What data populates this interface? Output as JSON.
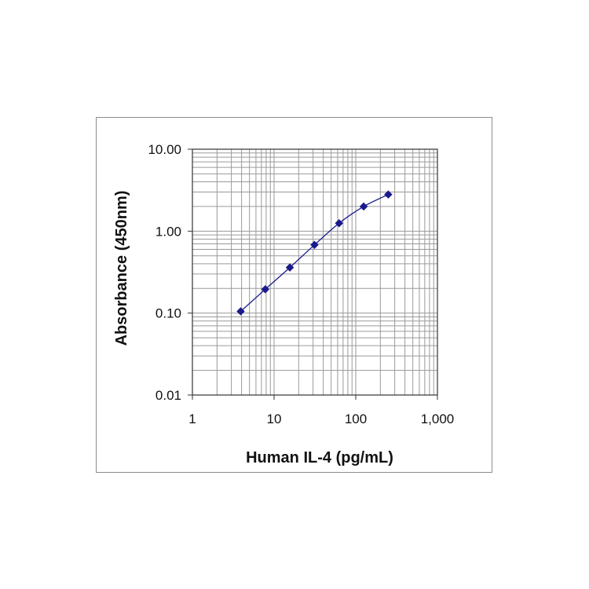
{
  "chart_data": {
    "type": "scatter",
    "title": "",
    "xlabel": "Human IL-4 (pg/mL)",
    "ylabel": "Absorbance (450nm)",
    "x_scale": "log",
    "y_scale": "log",
    "xlim": [
      1,
      1000
    ],
    "ylim": [
      0.01,
      10
    ],
    "x_ticks": [
      1,
      10,
      100,
      1000
    ],
    "x_tick_labels": [
      "1",
      "10",
      "100",
      "1,000"
    ],
    "y_ticks": [
      0.01,
      0.1,
      1,
      10
    ],
    "y_tick_labels": [
      "0.01",
      "0.10",
      "1.00",
      "10.00"
    ],
    "grid": true,
    "legend": "none",
    "series": [
      {
        "x": [
          3.9,
          7.8,
          15.6,
          31.25,
          62.5,
          125,
          250
        ],
        "y": [
          0.105,
          0.195,
          0.36,
          0.68,
          1.25,
          2.0,
          2.8
        ],
        "color": "#1a1a8c",
        "marker": "diamond",
        "line": "smooth"
      }
    ],
    "grid_color": "#9a9a9a",
    "axis_color": "#333333"
  }
}
